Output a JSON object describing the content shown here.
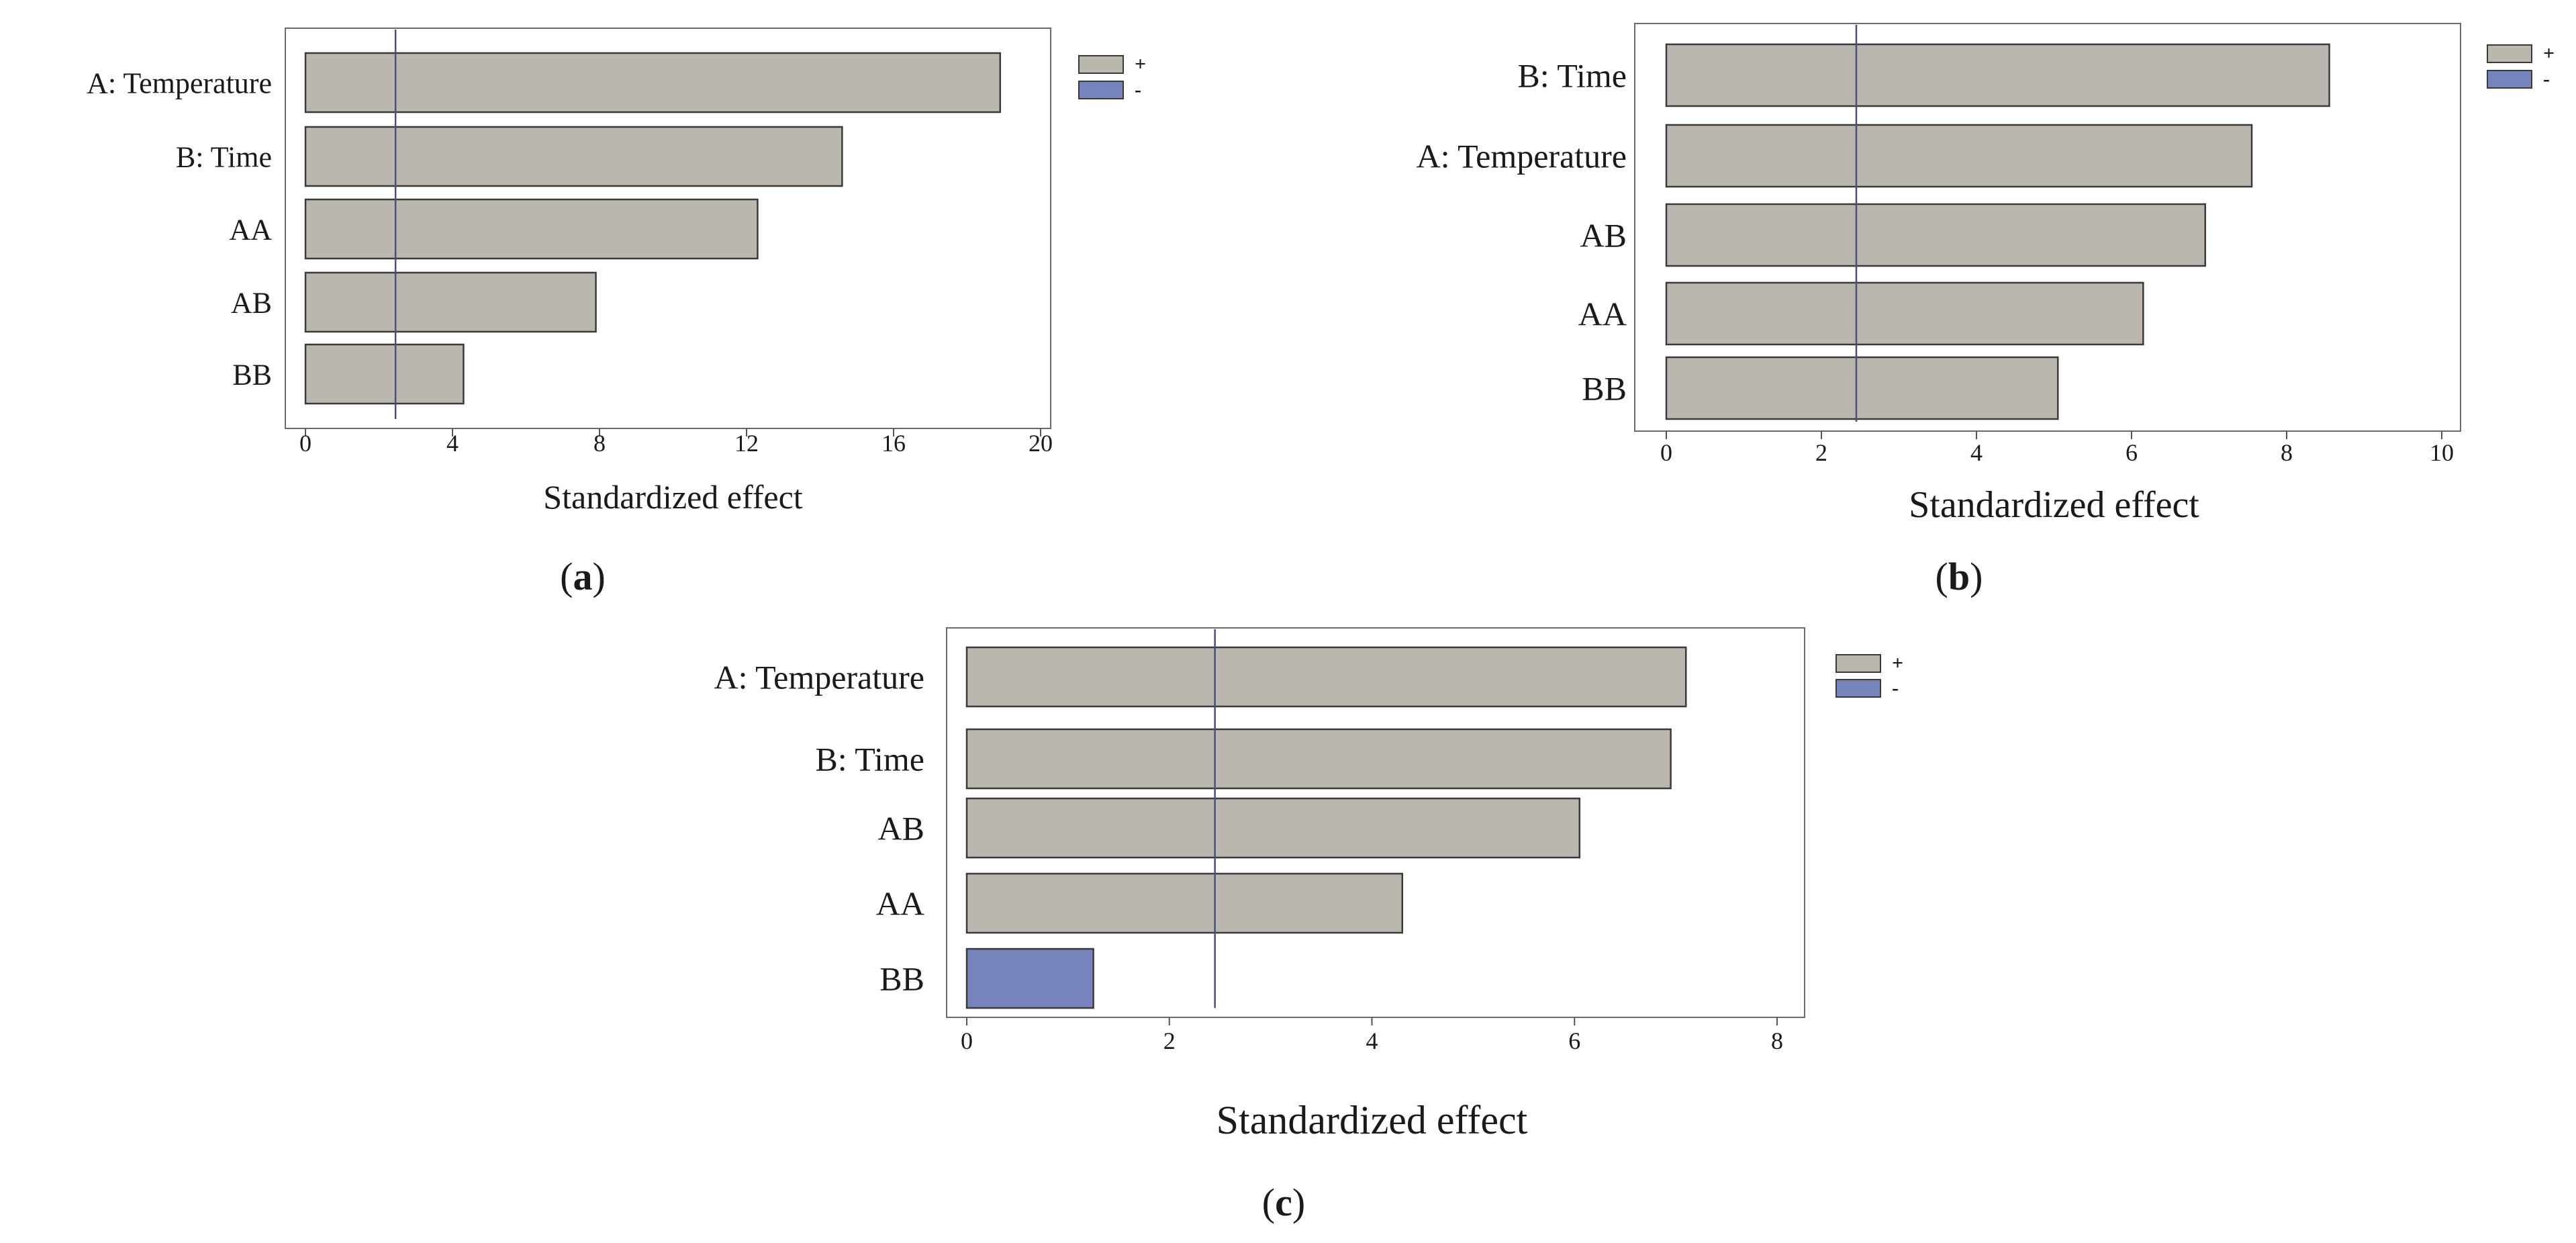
{
  "chart_data": [
    {
      "panel_label": "a",
      "type": "bar",
      "orientation": "horizontal",
      "title": "",
      "xlabel": "Standardized effect",
      "ylabel": "",
      "categories": [
        "A: Temperature",
        "B: Time",
        "AA",
        "AB",
        "BB"
      ],
      "values": [
        18.9,
        14.6,
        12.3,
        7.9,
        4.3
      ],
      "signs": [
        "+",
        "+",
        "+",
        "+",
        "+"
      ],
      "xlim": [
        0,
        20
      ],
      "xticks": [
        0,
        4,
        8,
        12,
        16,
        20
      ],
      "reference_line": 2.45,
      "legend": {
        "position": "right",
        "entries": [
          {
            "label": "+",
            "color": "#bbb6ae"
          },
          {
            "label": "-",
            "color": "#7684bb"
          }
        ]
      }
    },
    {
      "panel_label": "b",
      "type": "bar",
      "orientation": "horizontal",
      "title": "",
      "xlabel": "Standardized effect",
      "ylabel": "",
      "categories": [
        "B: Time",
        "A: Temperature",
        "AB",
        "AA",
        "BB"
      ],
      "values": [
        8.55,
        7.55,
        6.95,
        6.15,
        5.05
      ],
      "signs": [
        "+",
        "+",
        "+",
        "+",
        "+"
      ],
      "xlim": [
        0,
        10
      ],
      "xticks": [
        0,
        2,
        4,
        6,
        8,
        10
      ],
      "reference_line": 2.45,
      "legend": {
        "position": "right",
        "entries": [
          {
            "label": "+",
            "color": "#bbb6ae"
          },
          {
            "label": "-",
            "color": "#7684bb"
          }
        ]
      }
    },
    {
      "panel_label": "c",
      "type": "bar",
      "orientation": "horizontal",
      "title": "",
      "xlabel": "Standardized effect",
      "ylabel": "",
      "categories": [
        "A: Temperature",
        "B: Time",
        "AB",
        "AA",
        "BB"
      ],
      "values": [
        7.1,
        6.95,
        6.05,
        4.3,
        1.25
      ],
      "signs": [
        "+",
        "+",
        "+",
        "+",
        "-"
      ],
      "xlim": [
        0,
        8
      ],
      "xticks": [
        0,
        2,
        4,
        6,
        8
      ],
      "reference_line": 2.45,
      "legend": {
        "position": "right",
        "entries": [
          {
            "label": "+",
            "color": "#bbb6ae"
          },
          {
            "label": "-",
            "color": "#7684bb"
          }
        ]
      }
    }
  ],
  "colors": {
    "positive": "#bbb6ae",
    "negative": "#7684bb",
    "stroke": "#3a3a3a",
    "reference_line": "#4b4f7a"
  }
}
